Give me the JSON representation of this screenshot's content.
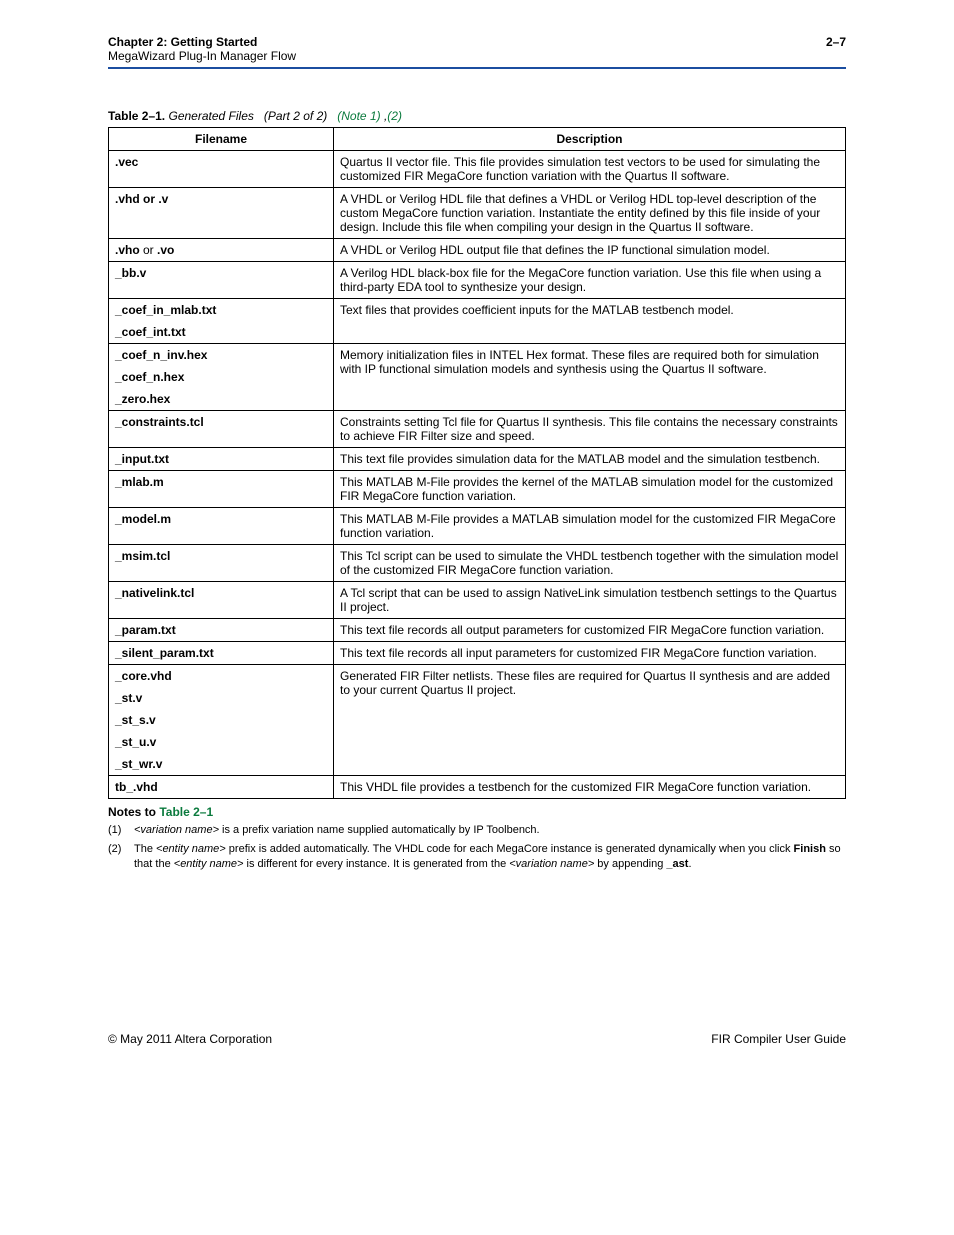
{
  "header": {
    "chapter": "Chapter 2:  Getting Started",
    "subtitle": "MegaWizard Plug-In Manager Flow",
    "pageNumber": "2–7"
  },
  "caption": {
    "label": "Table 2–1.",
    "title": "Generated Files",
    "part": "(Part 2 of 2)",
    "note1": "(Note 1)",
    "sep": " ,",
    "note2": "(2)"
  },
  "table": {
    "headers": {
      "filename": "Filename",
      "description": "Description"
    },
    "varName": "<variation name>",
    "rows": [
      {
        "files": [
          {
            "suffix": ".vec"
          }
        ],
        "desc": "Quartus II vector file. This file provides simulation test vectors to be used for simulating the customized FIR MegaCore function variation with the Quartus II software."
      },
      {
        "files": [
          {
            "suffix": ".vhd or .v"
          }
        ],
        "desc": "A VHDL or Verilog HDL file that defines a VHDL or Verilog HDL top-level description of the custom MegaCore function variation. Instantiate the entity defined by this file inside of your design. Include this file when compiling your design in the Quartus II software."
      },
      {
        "files": [
          {
            "suffix": ".vho",
            "after": " or ",
            "suffix2": ".vo"
          }
        ],
        "desc": "A VHDL or Verilog HDL output file that defines the IP functional simulation model."
      },
      {
        "files": [
          {
            "suffix": "_bb.v"
          }
        ],
        "desc": "A Verilog HDL black-box file for the MegaCore function variation. Use this file when using a third-party EDA tool to synthesize your design."
      },
      {
        "files": [
          {
            "suffix": "_coef_in_mlab.txt"
          },
          {
            "suffix": "_coef_int.txt"
          }
        ],
        "desc": "Text files that provides coefficient inputs for the MATLAB testbench model."
      },
      {
        "files": [
          {
            "suffix": "_coef_n_inv.hex"
          },
          {
            "suffix": "_coef_n.hex"
          },
          {
            "suffix": "_zero.hex"
          }
        ],
        "desc": "Memory initialization files in INTEL Hex format. These files are required both for simulation with IP functional simulation models and synthesis using the Quartus  II software."
      },
      {
        "files": [
          {
            "suffix": "_constraints.tcl"
          }
        ],
        "desc": "Constraints setting Tcl file for Quartus II synthesis. This file contains the necessary constraints to achieve FIR Filter size and speed."
      },
      {
        "files": [
          {
            "suffix": "_input.txt"
          }
        ],
        "desc": "This text file provides simulation data for the MATLAB model and the simulation testbench."
      },
      {
        "files": [
          {
            "suffix": "_mlab.m"
          }
        ],
        "desc": "This MATLAB M-File provides the kernel of the MATLAB simulation model for the customized FIR MegaCore function variation."
      },
      {
        "files": [
          {
            "suffix": "_model.m"
          }
        ],
        "desc": "This MATLAB M-File provides a MATLAB simulation model for the customized FIR MegaCore function variation."
      },
      {
        "files": [
          {
            "suffix": "_msim.tcl"
          }
        ],
        "desc": "This Tcl script can be used to simulate the VHDL testbench together with the simulation model of the customized FIR MegaCore function variation."
      },
      {
        "files": [
          {
            "suffix": "_nativelink.tcl"
          }
        ],
        "desc": "A Tcl script that can be used to assign NativeLink simulation testbench settings to the Quartus II project."
      },
      {
        "files": [
          {
            "suffix": "_param.txt"
          }
        ],
        "desc": "This text file records all output parameters for customized FIR MegaCore function variation."
      },
      {
        "files": [
          {
            "suffix": "_silent_param.txt"
          }
        ],
        "desc": "This text file records all input parameters for customized FIR MegaCore function variation."
      },
      {
        "files": [
          {
            "suffix": "_core.vhd"
          },
          {
            "suffix": "_st.v"
          },
          {
            "suffix": "_st_s.v"
          },
          {
            "suffix": "_st_u.v"
          },
          {
            "suffix": "_st_wr.v"
          }
        ],
        "desc": "Generated FIR Filter netlists. These files are required for Quartus II synthesis and are added to your current Quartus II project."
      },
      {
        "files": [
          {
            "prefix": "tb_",
            "suffix": ".vhd"
          }
        ],
        "desc": "This VHDL file provides a testbench for the customized FIR MegaCore function variation."
      }
    ]
  },
  "notes": {
    "heading_prefix": "Notes to ",
    "heading_link": "Table 2–1",
    "items": [
      {
        "num": "(1)",
        "parts": [
          {
            "t": "<variation name>",
            "italic": true
          },
          {
            "t": " is a prefix variation name supplied automatically by IP Toolbench."
          }
        ]
      },
      {
        "num": "(2)",
        "parts": [
          {
            "t": "The "
          },
          {
            "t": "<entity name>",
            "italic": true
          },
          {
            "t": " prefix is added automatically. The VHDL code for each MegaCore instance is generated dynamically when you click "
          },
          {
            "t": "Finish",
            "bold": true
          },
          {
            "t": " so that the "
          },
          {
            "t": "<entity name>",
            "italic": true
          },
          {
            "t": " is different for every instance. It is generated from the "
          },
          {
            "t": "<variation name>",
            "italic": true
          },
          {
            "t": " by appending "
          },
          {
            "t": "_ast",
            "bold": true
          },
          {
            "t": "."
          }
        ]
      }
    ]
  },
  "footer": {
    "left": "© May 2011   Altera Corporation",
    "right": "FIR Compiler User Guide"
  }
}
